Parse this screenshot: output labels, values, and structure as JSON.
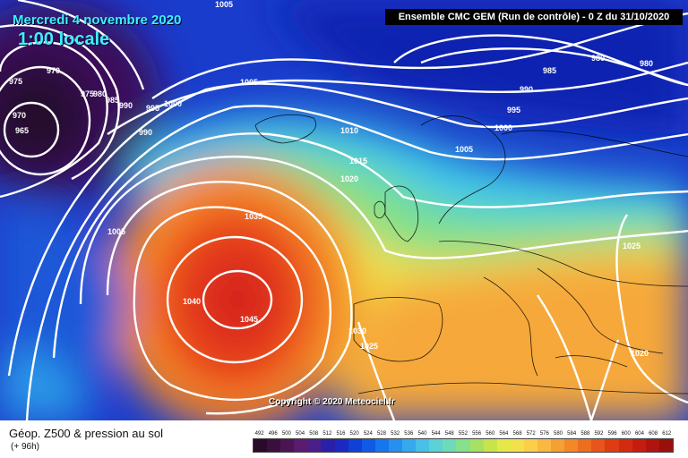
{
  "header": {
    "date": "Mercredi 4 novembre 2020",
    "local_time": "1:00 locale",
    "run_info": "Ensemble CMC GEM (Run de contrôle) - 0 Z du 31/10/2020"
  },
  "map": {
    "copyright": "Copyright © 2020 Meteociel.fr",
    "isobar_labels": [
      {
        "text": "1005"
      },
      {
        "text": "970"
      },
      {
        "text": "975"
      },
      {
        "text": "975"
      },
      {
        "text": "980"
      },
      {
        "text": "985"
      },
      {
        "text": "990"
      },
      {
        "text": "995"
      },
      {
        "text": "1000"
      },
      {
        "text": "970"
      },
      {
        "text": "965"
      },
      {
        "text": "990"
      },
      {
        "text": "1005"
      },
      {
        "text": "985"
      },
      {
        "text": "980"
      },
      {
        "text": "980"
      },
      {
        "text": "990"
      },
      {
        "text": "995"
      },
      {
        "text": "1000"
      },
      {
        "text": "1010"
      },
      {
        "text": "1005"
      },
      {
        "text": "1015"
      },
      {
        "text": "1020"
      },
      {
        "text": "1035"
      },
      {
        "text": "1005"
      },
      {
        "text": "1040"
      },
      {
        "text": "1045"
      },
      {
        "text": "1030"
      },
      {
        "text": "1025"
      },
      {
        "text": "1025"
      },
      {
        "text": "1020"
      }
    ]
  },
  "legend": {
    "title": "Géop. Z500 & pression au sol",
    "subtitle": "(+ 96h)",
    "scale_values": [
      "492",
      "496",
      "500",
      "504",
      "508",
      "512",
      "516",
      "520",
      "524",
      "528",
      "532",
      "536",
      "540",
      "544",
      "548",
      "552",
      "556",
      "560",
      "564",
      "568",
      "572",
      "576",
      "580",
      "584",
      "588",
      "592",
      "596",
      "600",
      "604",
      "608",
      "612"
    ],
    "scale_colors": [
      "#2a0a2a",
      "#3a0f3f",
      "#4b1453",
      "#5b1b6e",
      "#4a1f8a",
      "#2a1fa8",
      "#1a2ac0",
      "#1040d6",
      "#0f5ae6",
      "#1676ee",
      "#2590f0",
      "#35a8ee",
      "#48c0e8",
      "#5ad2d6",
      "#6cdcb8",
      "#86e08c",
      "#a6e064",
      "#c8e44c",
      "#e6e84a",
      "#f4e04a",
      "#fbcf4a",
      "#f9b840",
      "#f5a032",
      "#f28828",
      "#ee6e20",
      "#e8541a",
      "#e03c14",
      "#d62a10",
      "#c61c10",
      "#b0140e",
      "#98100c"
    ]
  }
}
